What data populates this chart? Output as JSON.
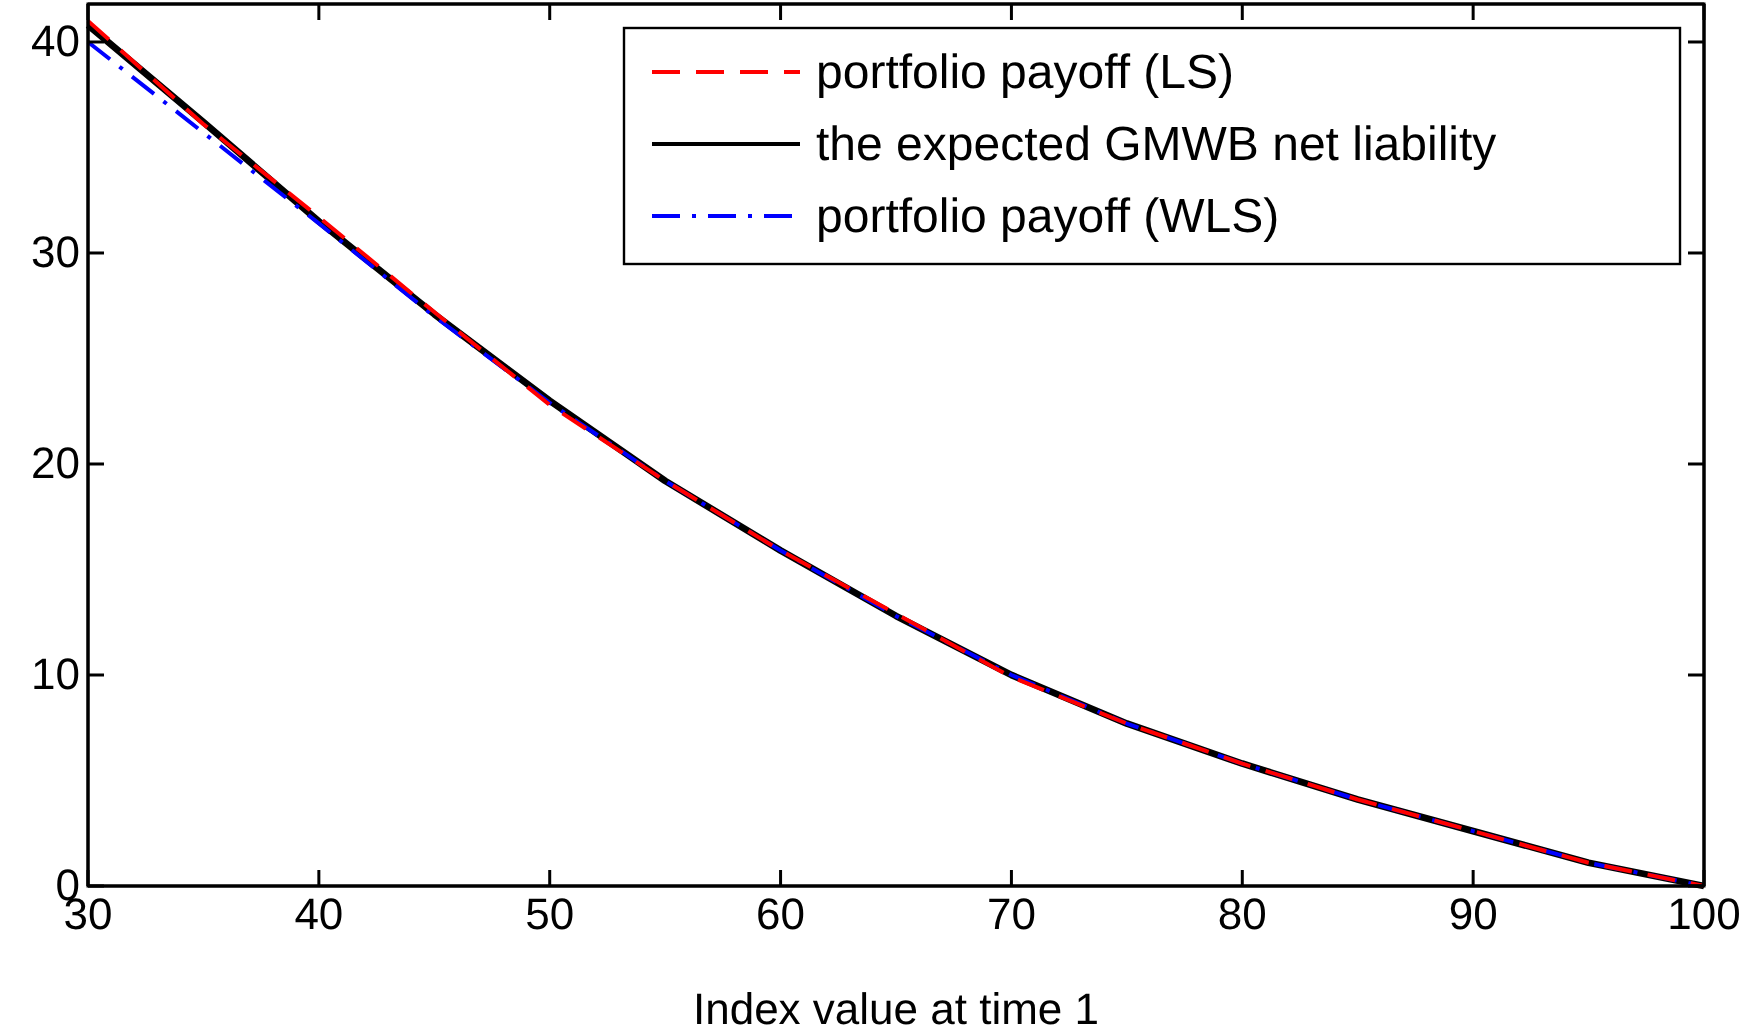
{
  "chart_data": {
    "type": "line",
    "xlabel": "Index value at time 1",
    "x": [
      30,
      35,
      40,
      45,
      50,
      55,
      60,
      65,
      70,
      75,
      80,
      85,
      90,
      95,
      100
    ],
    "xlim": [
      30,
      100
    ],
    "xticks": [
      30,
      40,
      50,
      60,
      70,
      80,
      90,
      100
    ],
    "ylim": [
      0,
      41.8
    ],
    "yticks": [
      0,
      10,
      20,
      30,
      40
    ],
    "grid": false,
    "legend": "top right",
    "series": [
      {
        "name": "portfolio payoff (LS)",
        "color": "#ff0000",
        "line_style": "dashed",
        "values": [
          41.0,
          36.1,
          31.7,
          27.2,
          22.8,
          19.2,
          15.9,
          12.9,
          9.9,
          7.7,
          5.8,
          4.1,
          2.6,
          1.1,
          0
        ]
      },
      {
        "name": "the expected GMWB net liability",
        "color": "#000000",
        "line_style": "solid",
        "values": [
          40.8,
          36.2,
          31.5,
          27.1,
          23.0,
          19.2,
          15.9,
          12.8,
          10.0,
          7.7,
          5.8,
          4.1,
          2.6,
          1.1,
          0
        ]
      },
      {
        "name": "portfolio payoff (WLS)",
        "color": "#0000ff",
        "line_style": "dashdot",
        "values": [
          40.0,
          35.7,
          31.4,
          27.0,
          22.9,
          19.2,
          15.9,
          12.8,
          10.0,
          7.7,
          5.8,
          4.1,
          2.6,
          1.1,
          0
        ]
      }
    ]
  }
}
